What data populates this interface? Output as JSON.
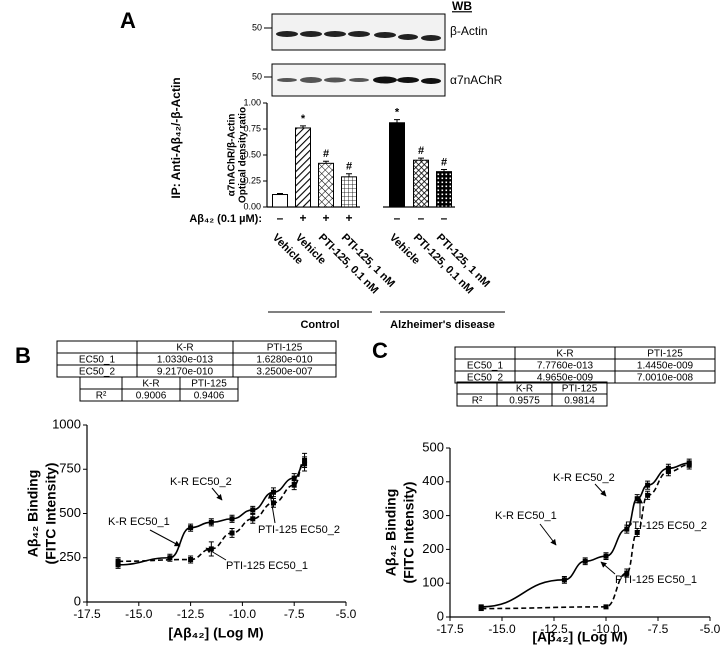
{
  "chart_data": [
    {
      "type": "bar",
      "panel": "A",
      "blots": {
        "label": "WB",
        "rows": [
          {
            "name": "β-Actin",
            "marker": 50
          },
          {
            "name": "α7nAChR",
            "marker": 50
          }
        ]
      },
      "outer_label": "IP: Anti-Aβ₄₂/-β-Actin",
      "ylabel": [
        "α7nAChR/β-Actin",
        "Optical density ratio"
      ],
      "ylim": [
        0,
        1
      ],
      "yticks": [
        {
          "value": 0,
          "label": "0.00"
        },
        {
          "value": 0.25,
          "label": "0.25"
        },
        {
          "value": 0.5,
          "label": "0.50"
        },
        {
          "value": 0.75,
          "label": "0.75"
        },
        {
          "value": 1,
          "label": "1.00"
        }
      ],
      "categories": [
        "Vehicle",
        "Vehicle",
        "PTI-125, 0.1 nM",
        "PTI-125, 1 nM",
        "Vehicle",
        "PTI-125, 0.1 nM",
        "PTI-125, 1 nM"
      ],
      "values": [
        0.12,
        0.76,
        0.42,
        0.29,
        0.81,
        0.45,
        0.34
      ],
      "errors": [
        0.01,
        0.02,
        0.02,
        0.03,
        0.03,
        0.02,
        0.02
      ],
      "annotations": [
        null,
        "*",
        "#",
        "#",
        "*",
        "#",
        "#"
      ],
      "treatment_label": "Aβ₄₂ (0.1 µM):",
      "treatment": [
        "–",
        "+",
        "+",
        "+",
        "–",
        "–",
        "–"
      ],
      "groups": [
        "Control",
        "Alzheimer's disease"
      ]
    },
    {
      "type": "line",
      "panel": "B",
      "tables": [
        {
          "header": [
            "K-R",
            "PTI-125"
          ],
          "rows": [
            [
              "EC50_1",
              "1.0330e-013",
              "1.6280e-010"
            ],
            [
              "EC50_2",
              "9.2170e-010",
              "3.2500e-007"
            ]
          ]
        },
        {
          "header": [
            "K-R",
            "PTI-125"
          ],
          "rows": [
            [
              "R²",
              "0.9006",
              "0.9406"
            ]
          ]
        }
      ],
      "ylabel": [
        "Aβ₄₂ Binding",
        "(FITC Intensity)"
      ],
      "xlabel": "[Aβ₄₂] (Log M)",
      "xlim": [
        -17.5,
        -5
      ],
      "xticks": [
        {
          "value": -17.5,
          "label": "-17.5"
        },
        {
          "value": -15,
          "label": "-15.0"
        },
        {
          "value": -12.5,
          "label": "-12.5"
        },
        {
          "value": -10,
          "label": "-10.0"
        },
        {
          "value": -7.5,
          "label": "-7.5"
        },
        {
          "value": -5,
          "label": "-5.0"
        }
      ],
      "ylim": [
        0,
        1000
      ],
      "yticks": [
        0,
        250,
        500,
        750,
        1000
      ],
      "series": [
        {
          "color": "#000000",
          "dashed": false,
          "x": [
            -16,
            -13.5,
            -12.5,
            -11.5,
            -10.5,
            -9.5,
            -8.5,
            -7.5,
            -7
          ],
          "values": [
            210,
            250,
            420,
            450,
            470,
            520,
            620,
            700,
            780
          ],
          "errors": [
            20,
            20,
            20,
            20,
            20,
            20,
            25,
            25,
            40
          ]
        },
        {
          "color": "#000000",
          "dashed": true,
          "x": [
            -16,
            -12.5,
            -11.5,
            -10.5,
            -9.5,
            -8.5,
            -7.5,
            -7
          ],
          "values": [
            230,
            240,
            300,
            390,
            470,
            560,
            660,
            800
          ],
          "errors": [
            20,
            20,
            40,
            25,
            25,
            25,
            25,
            40
          ]
        }
      ],
      "annotations": [
        "K-R EC50_1",
        "K-R EC50_2",
        "PTI-125 EC50_2",
        "PTI-125 EC50_1"
      ]
    },
    {
      "type": "line",
      "panel": "C",
      "tables": [
        {
          "header": [
            "K-R",
            "PTI-125"
          ],
          "rows": [
            [
              "EC50_1",
              "7.7760e-013",
              "1.4450e-009"
            ],
            [
              "EC50_2",
              "4.9650e-009",
              "7.0010e-008"
            ]
          ]
        },
        {
          "header": [
            "K-R",
            "PTI-125"
          ],
          "rows": [
            [
              "R²",
              "0.9575",
              "0.9814"
            ]
          ]
        }
      ],
      "ylabel": [
        "Aβ₄₂ Binding",
        "(FITC Intensity)"
      ],
      "xlabel": "[Aβ₄₂] (Log M)",
      "xlim": [
        -17.5,
        -5
      ],
      "xticks": [
        {
          "value": -17.5,
          "label": "-17.5"
        },
        {
          "value": -15,
          "label": "-15.0"
        },
        {
          "value": -12.5,
          "label": "-12.5"
        },
        {
          "value": -10,
          "label": "-10.0"
        },
        {
          "value": -7.5,
          "label": "-7.5"
        },
        {
          "value": -5,
          "label": "-5.0"
        }
      ],
      "ylim": [
        0,
        500
      ],
      "yticks": [
        0,
        100,
        200,
        300,
        400,
        500
      ],
      "series": [
        {
          "color": "#000000",
          "dashed": false,
          "x": [
            -16,
            -12,
            -11,
            -10,
            -9,
            -8.5,
            -8,
            -7,
            -6
          ],
          "values": [
            30,
            110,
            165,
            180,
            260,
            350,
            390,
            440,
            455
          ],
          "errors": [
            5,
            10,
            10,
            10,
            12,
            12,
            12,
            12,
            12
          ]
        },
        {
          "color": "#000000",
          "dashed": true,
          "x": [
            -16,
            -10,
            -9,
            -8.5,
            -8,
            -7,
            -6
          ],
          "values": [
            25,
            30,
            130,
            250,
            360,
            430,
            450
          ],
          "errors": [
            5,
            5,
            12,
            12,
            12,
            12,
            12
          ]
        }
      ],
      "annotations": [
        "K-R EC50_1",
        "K-R EC50_2",
        "PTI-125 EC50_2",
        "PTI-125 EC50_1"
      ]
    }
  ]
}
